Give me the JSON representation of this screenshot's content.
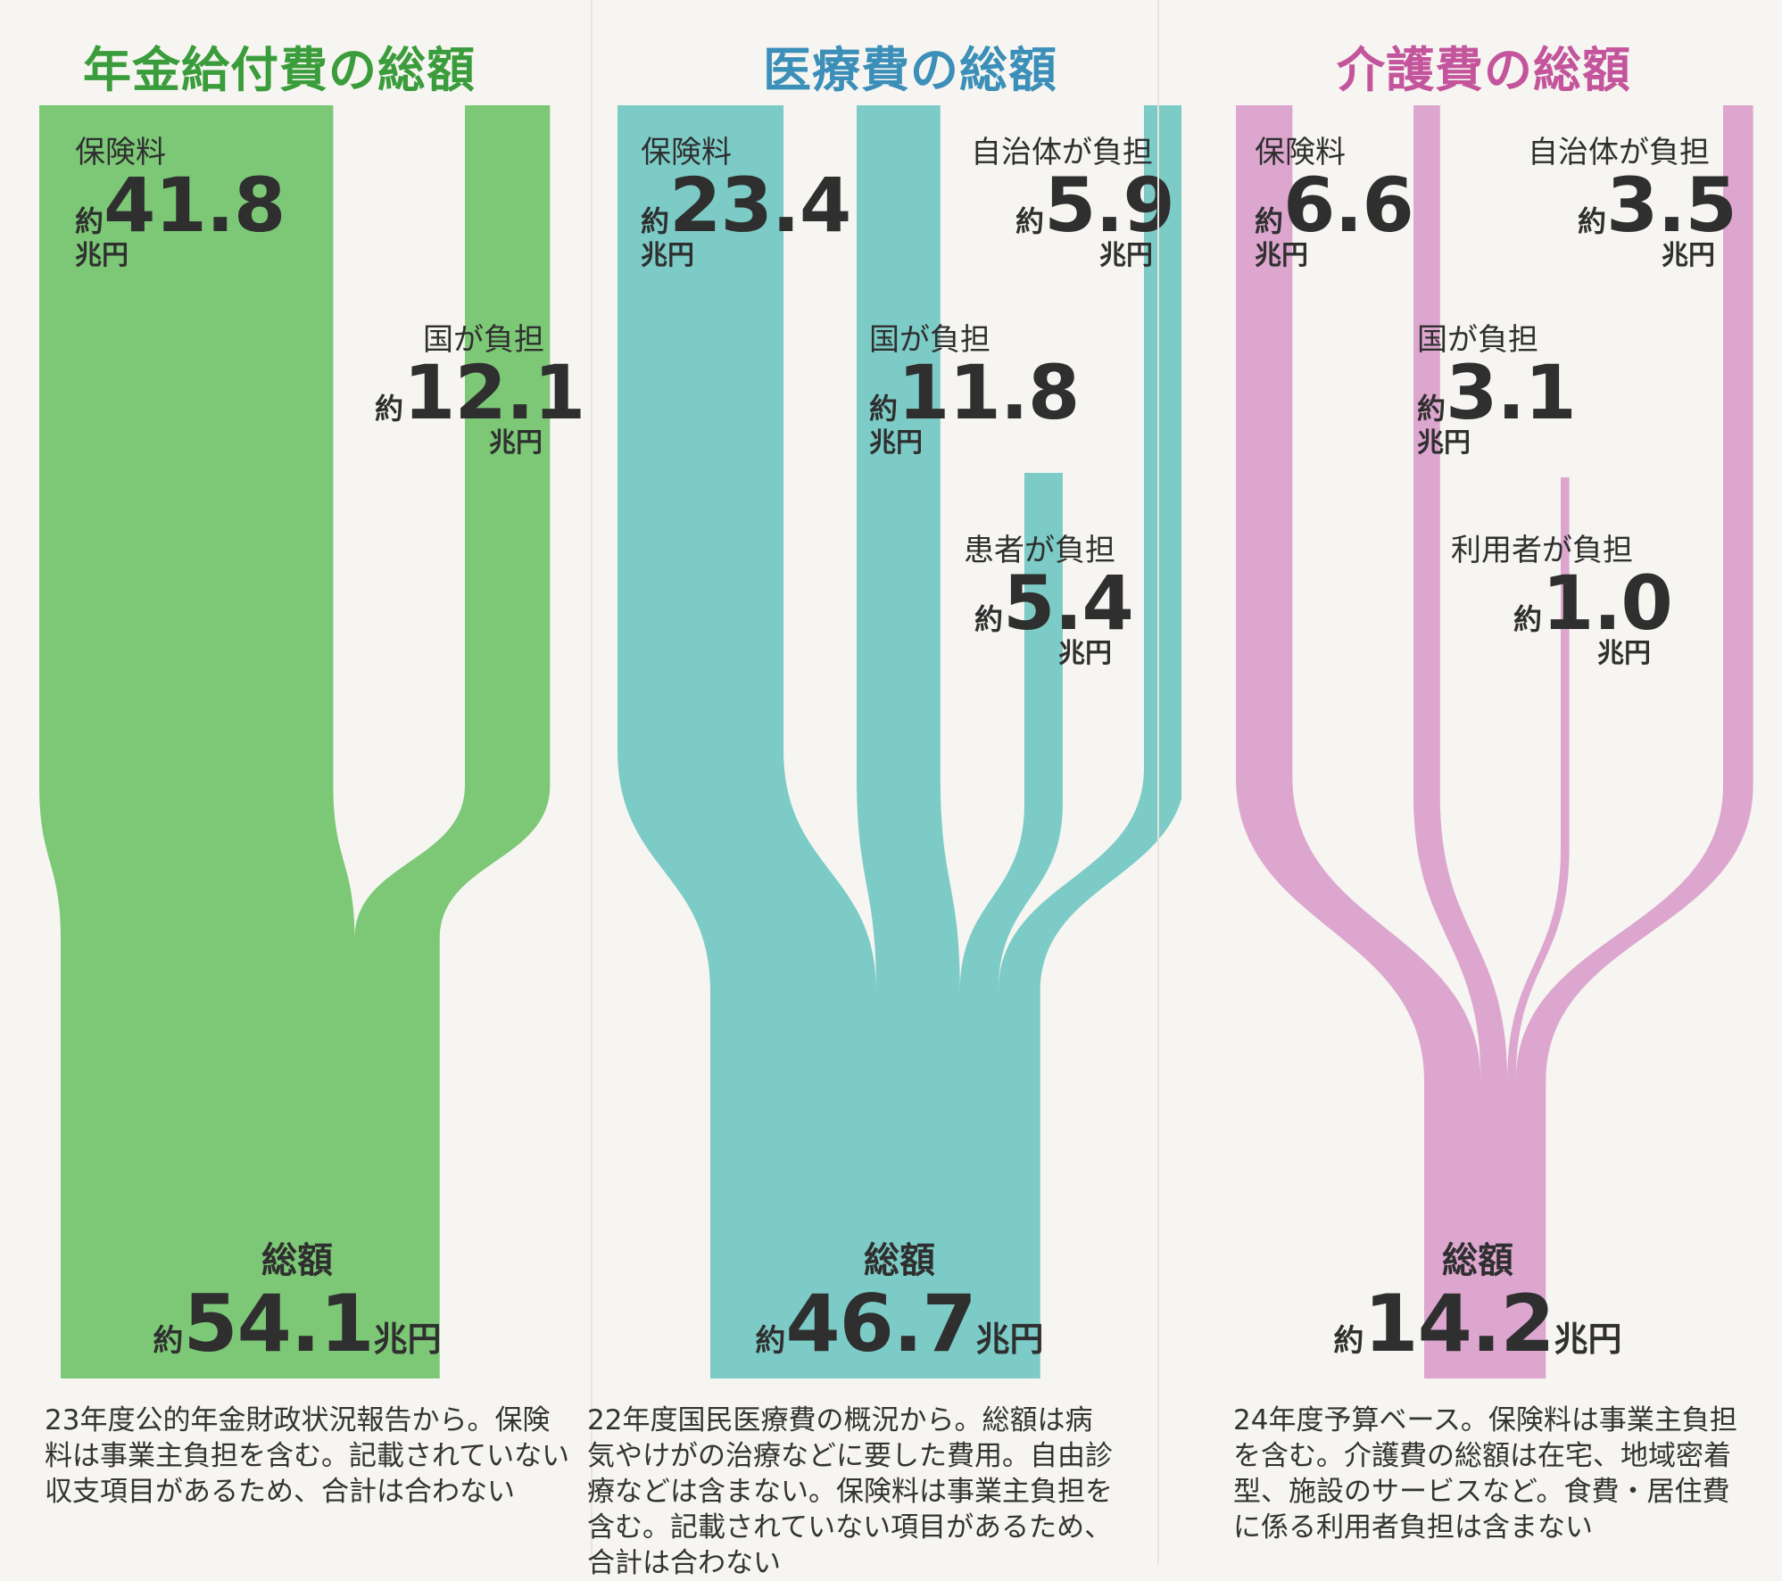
{
  "chart_data": [
    {
      "type": "sankey",
      "title": "年金給付費の総額",
      "color": "#7cc876",
      "unit": "兆円",
      "sources": [
        {
          "name": "保険料",
          "prefix": "約",
          "value": 41.8,
          "value_text": "41.8",
          "unit": "兆円"
        },
        {
          "name": "国が負担",
          "prefix": "約",
          "value": 12.1,
          "value_text": "12.1",
          "unit": "兆円"
        }
      ],
      "total": {
        "label": "総額",
        "prefix": "約",
        "value": 54.1,
        "value_text": "54.1",
        "unit": "兆円"
      },
      "note": "23年度公的年金財政状況報告から。保険料は事業主負担を含む。記載されていない収支項目があるため、合計は合わない"
    },
    {
      "type": "sankey",
      "title": "医療費の総額",
      "color": "#7ccbc6",
      "unit": "兆円",
      "sources": [
        {
          "name": "保険料",
          "prefix": "約",
          "value": 23.4,
          "value_text": "23.4",
          "unit": "兆円"
        },
        {
          "name": "国が負担",
          "prefix": "約",
          "value": 11.8,
          "value_text": "11.8",
          "unit": "兆円"
        },
        {
          "name": "患者が負担",
          "prefix": "約",
          "value": 5.4,
          "value_text": "5.4",
          "unit": "兆円"
        },
        {
          "name": "自治体が負担",
          "prefix": "約",
          "value": 5.9,
          "value_text": "5.9",
          "unit": "兆円"
        }
      ],
      "total": {
        "label": "総額",
        "prefix": "約",
        "value": 46.7,
        "value_text": "46.7",
        "unit": "兆円"
      },
      "note": "22年度国民医療費の概況から。総額は病気やけがの治療などに要した費用。自由診療などは含まない。保険料は事業主負担を含む。記載されていない項目があるため、合計は合わない"
    },
    {
      "type": "sankey",
      "title": "介護費の総額",
      "color": "#dca6cf",
      "unit": "兆円",
      "sources": [
        {
          "name": "保険料",
          "prefix": "約",
          "value": 6.6,
          "value_text": "6.6",
          "unit": "兆円"
        },
        {
          "name": "国が負担",
          "prefix": "約",
          "value": 3.1,
          "value_text": "3.1",
          "unit": "兆円"
        },
        {
          "name": "利用者が負担",
          "prefix": "約",
          "value": 1.0,
          "value_text": "1.0",
          "unit": "兆円"
        },
        {
          "name": "自治体が負担",
          "prefix": "約",
          "value": 3.5,
          "value_text": "3.5",
          "unit": "兆円"
        }
      ],
      "total": {
        "label": "総額",
        "prefix": "約",
        "value": 14.2,
        "value_text": "14.2",
        "unit": "兆円"
      },
      "note": "24年度予算ベース。保険料は事業主負担を含む。介護費の総額は在宅、地域密着型、施設のサービスなど。食費・居住費に係る利用者負担は含まない"
    }
  ],
  "title_colors": [
    "#3a9c3b",
    "#3c8fb8",
    "#c4559c"
  ]
}
